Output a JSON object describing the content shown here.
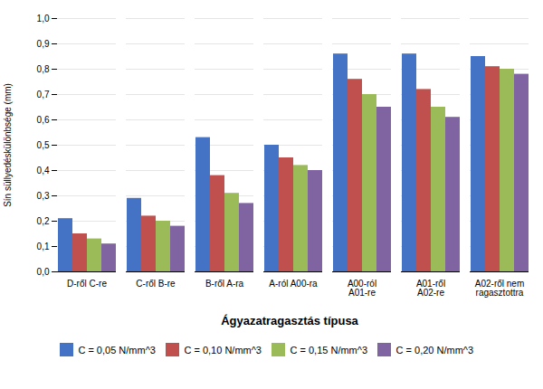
{
  "chart_data": {
    "type": "bar",
    "categories": [
      "D-ről C-re",
      "C-ről B-re",
      "B-ről A-ra",
      "A-ról A00-ra",
      "A00-ról\nA01-re",
      "A01-ről\nA02-re",
      "A02-ről nem\nragasztottra"
    ],
    "series": [
      {
        "name": "C = 0,05 N/mm^3",
        "color": "#4472C4",
        "values": [
          0.21,
          0.29,
          0.53,
          0.5,
          0.86,
          0.86,
          0.85
        ]
      },
      {
        "name": "C = 0,10 N/mm^3",
        "color": "#C0504D",
        "values": [
          0.15,
          0.22,
          0.38,
          0.45,
          0.76,
          0.72,
          0.81
        ]
      },
      {
        "name": "C = 0,15 N/mm^3",
        "color": "#9BBB59",
        "values": [
          0.13,
          0.2,
          0.31,
          0.42,
          0.7,
          0.65,
          0.8
        ]
      },
      {
        "name": "C = 0,20 N/mm^3",
        "color": "#8064A2",
        "values": [
          0.11,
          0.18,
          0.27,
          0.4,
          0.65,
          0.61,
          0.78
        ]
      }
    ],
    "ylabel": "Sín süllyedéskülönbsége (mm)",
    "xlabel": "Ágyazatragasztás típusa",
    "ylim": [
      0.0,
      1.0
    ],
    "yticks": [
      {
        "value": 0.0,
        "label": "0,0"
      },
      {
        "value": 0.1,
        "label": "0,1"
      },
      {
        "value": 0.2,
        "label": "0,2"
      },
      {
        "value": 0.3,
        "label": "0,3"
      },
      {
        "value": 0.4,
        "label": "0,4"
      },
      {
        "value": 0.5,
        "label": "0,5"
      },
      {
        "value": 0.6,
        "label": "0,6"
      },
      {
        "value": 0.7,
        "label": "0,7"
      },
      {
        "value": 0.8,
        "label": "0,8"
      },
      {
        "value": 0.9,
        "label": "0,9"
      },
      {
        "value": 1.0,
        "label": "1,0"
      }
    ],
    "grid": true,
    "legend": "bottom"
  }
}
